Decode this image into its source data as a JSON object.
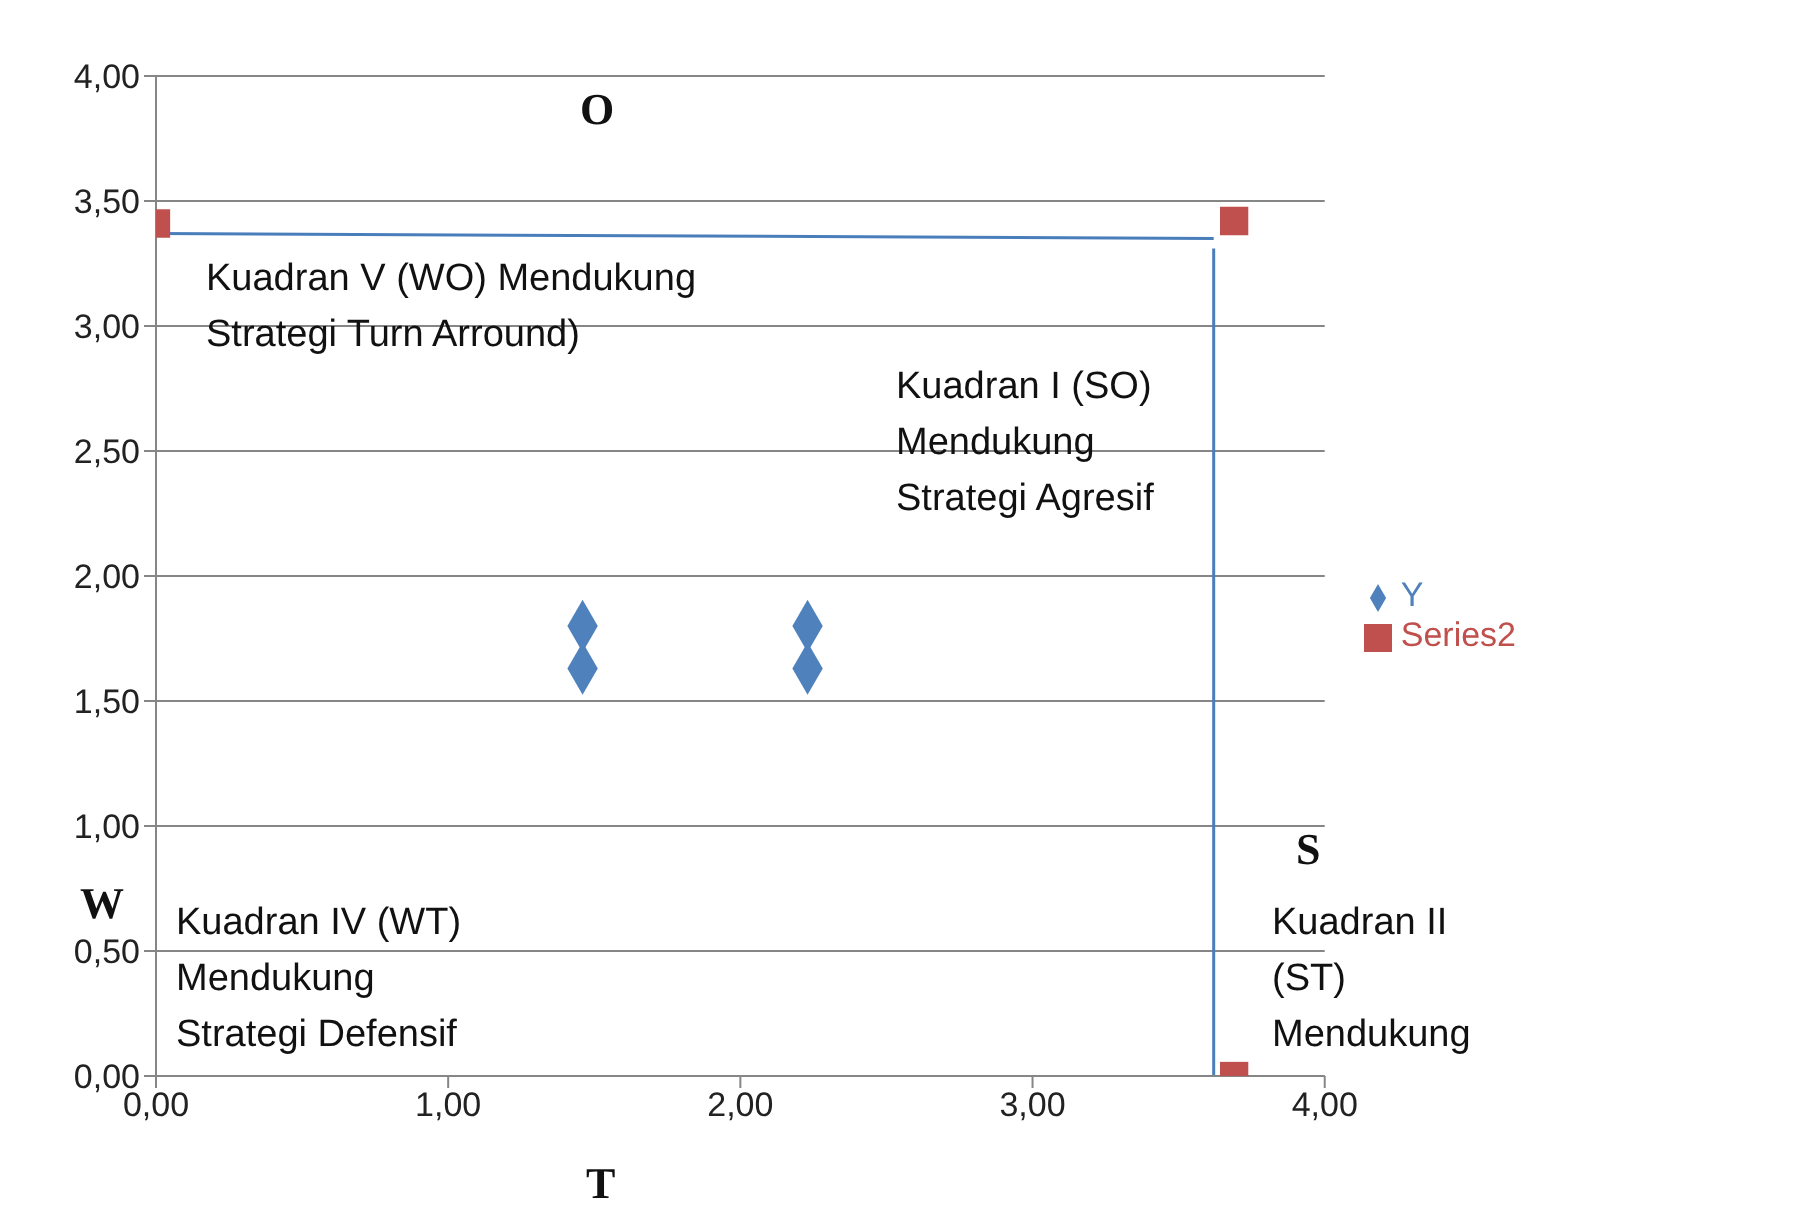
{
  "chart_data": {
    "type": "scatter",
    "xlim": [
      0,
      4
    ],
    "xticks": [
      {
        "value": 0,
        "label": "0,00"
      },
      {
        "value": 1,
        "label": "1,00"
      },
      {
        "value": 2,
        "label": "2,00"
      },
      {
        "value": 3,
        "label": "3,00"
      },
      {
        "value": 4,
        "label": "4,00"
      }
    ],
    "ylim": [
      0,
      4
    ],
    "yticks": [
      {
        "value": 0,
        "label": "0,00"
      },
      {
        "value": 0.5,
        "label": "0,50"
      },
      {
        "value": 1,
        "label": "1,00"
      },
      {
        "value": 1.5,
        "label": "1,50"
      },
      {
        "value": 2,
        "label": "2,00"
      },
      {
        "value": 2.5,
        "label": "2,50"
      },
      {
        "value": 3,
        "label": "3,00"
      },
      {
        "value": 3.5,
        "label": "3,50"
      },
      {
        "value": 4,
        "label": "4,00"
      }
    ],
    "grid": "y",
    "legend": "right",
    "series": [
      {
        "name": "Y",
        "color": "#4f81bd",
        "marker": "diamond",
        "x": [
          1.46,
          1.46,
          2.23,
          2.23
        ],
        "values": [
          1.8,
          1.63,
          1.8,
          1.63
        ]
      },
      {
        "name": "Series2",
        "color": "#c0504d",
        "marker": "square",
        "x": [
          0,
          3.69,
          3.69
        ],
        "values": [
          3.41,
          3.42,
          0
        ]
      },
      {
        "type": "line",
        "color": "#4a7ebb",
        "marker": "none",
        "x": [
          0,
          3.62
        ],
        "values": [
          3.37,
          3.35
        ]
      },
      {
        "type": "line",
        "color": "#4a7ebb",
        "marker": "none",
        "x": [
          3.62,
          3.62
        ],
        "values": [
          3.31,
          0
        ]
      }
    ],
    "annotations": [
      "O",
      "W",
      "S",
      "T",
      "Kuadran V (WO) Mendukung Strategi Turn Arround)",
      "Kuadran I  (SO) Mendukung Strategi Agresif",
      "Kuadran IV (WT) Mendukung Strategi Defensif",
      "Kuadran II (ST) Mendukung"
    ]
  }
}
